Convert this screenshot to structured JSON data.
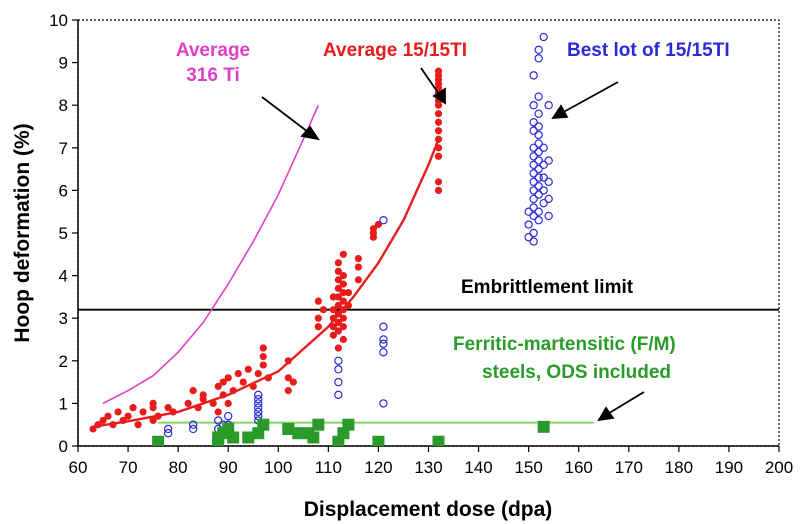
{
  "chart_data": {
    "type": "scatter",
    "title": "",
    "xlabel": "Displacement dose (dpa)",
    "ylabel": "Hoop deformation (%)",
    "xlim": [
      60,
      200
    ],
    "ylim": [
      0,
      10
    ],
    "x_ticks": [
      "60",
      "70",
      "80",
      "90",
      "100",
      "110",
      "120",
      "130",
      "140",
      "150",
      "160",
      "170",
      "180",
      "190",
      "200"
    ],
    "y_ticks": [
      "0",
      "1",
      "2",
      "3",
      "4",
      "5",
      "6",
      "7",
      "8",
      "9",
      "10"
    ],
    "grid": false,
    "colors": {
      "average_316ti": "#e040c8",
      "average_1515ti": "#e81c1c",
      "best_lot": "#2a2ad8",
      "ferritic": "#2a9a2a",
      "ferritic_line": "#88d060",
      "embrittlement": "#000000"
    },
    "series": [
      {
        "name": "Average 316 Ti",
        "kind": "line",
        "x": [
          65,
          70,
          75,
          80,
          85,
          90,
          95,
          100,
          105,
          108
        ],
        "y": [
          1.0,
          1.3,
          1.65,
          2.2,
          2.9,
          3.8,
          4.8,
          5.9,
          7.2,
          8.0
        ]
      },
      {
        "name": "Average 15/15Ti",
        "kind": "line",
        "x": [
          63,
          70,
          80,
          90,
          100,
          110,
          115,
          120,
          125,
          130,
          132
        ],
        "y": [
          0.45,
          0.58,
          0.8,
          1.2,
          1.75,
          2.8,
          3.5,
          4.3,
          5.3,
          6.6,
          7.2
        ]
      },
      {
        "name": "Average 15/15Ti",
        "kind": "points",
        "marker": "filled-circle",
        "x": [
          63,
          64,
          65,
          66,
          67,
          68,
          69,
          70,
          71,
          72,
          73,
          75,
          75,
          75,
          76,
          78,
          79,
          82,
          83,
          84,
          85,
          85,
          87,
          88,
          88,
          89,
          89,
          90,
          90,
          91,
          92,
          93,
          94,
          95,
          96,
          97,
          97,
          97,
          98,
          102,
          102,
          102,
          103,
          108,
          108,
          108,
          109,
          111,
          111,
          111,
          111,
          111,
          112,
          112,
          112,
          112,
          112,
          112,
          112,
          112,
          112,
          112,
          113,
          113,
          113,
          113,
          113,
          113,
          113,
          113,
          113,
          114,
          114,
          116,
          116,
          116,
          119,
          119,
          119,
          120,
          132,
          132,
          132,
          132,
          132,
          132,
          132,
          132,
          132,
          132,
          132,
          132,
          132,
          132,
          132,
          132
        ],
        "y": [
          0.4,
          0.5,
          0.6,
          0.7,
          0.5,
          0.8,
          0.6,
          0.7,
          0.9,
          0.5,
          0.8,
          0.9,
          0.6,
          1.0,
          0.7,
          0.9,
          0.8,
          1.0,
          1.3,
          0.9,
          1.2,
          1.1,
          1.0,
          1.4,
          0.8,
          1.5,
          1.2,
          1.0,
          1.6,
          1.3,
          1.7,
          1.5,
          1.8,
          1.4,
          1.7,
          2.3,
          2.1,
          1.9,
          1.6,
          1.3,
          1.6,
          2.0,
          1.5,
          2.8,
          3.0,
          3.4,
          3.2,
          2.6,
          2.8,
          3.0,
          3.2,
          3.5,
          2.3,
          2.7,
          2.9,
          3.1,
          3.3,
          3.5,
          3.7,
          3.9,
          4.1,
          4.3,
          2.5,
          2.8,
          3.0,
          3.2,
          3.4,
          3.6,
          3.8,
          4.0,
          4.5,
          3.3,
          3.6,
          3.9,
          4.2,
          4.4,
          4.9,
          5.0,
          5.1,
          5.2,
          6.0,
          6.2,
          6.8,
          7.0,
          7.2,
          7.4,
          7.6,
          7.8,
          8.0,
          8.1,
          8.3,
          8.4,
          8.5,
          8.6,
          8.7,
          8.8
        ]
      },
      {
        "name": "Best lot of 15/15TI",
        "kind": "points",
        "marker": "open-circle",
        "x": [
          78,
          78,
          83,
          83,
          88,
          88,
          89,
          90,
          90,
          90,
          96,
          96,
          96,
          96,
          96,
          96,
          96,
          112,
          112,
          112,
          112,
          121,
          121,
          121,
          121,
          121,
          121,
          150,
          150,
          150,
          151,
          151,
          151,
          151,
          151,
          151,
          151,
          151,
          151,
          151,
          151,
          151,
          151,
          151,
          151,
          152,
          152,
          152,
          152,
          152,
          152,
          152,
          152,
          152,
          152,
          152,
          152,
          152,
          152,
          152,
          153,
          153,
          153,
          153,
          153,
          153,
          154,
          154,
          154,
          154,
          154
        ],
        "y": [
          0.3,
          0.4,
          0.4,
          0.5,
          0.4,
          0.6,
          0.5,
          0.7,
          0.3,
          0.5,
          0.6,
          0.7,
          0.8,
          0.9,
          1.0,
          1.1,
          1.2,
          1.2,
          1.5,
          1.8,
          2.0,
          1.0,
          2.2,
          2.4,
          2.5,
          2.8,
          5.3,
          4.9,
          5.2,
          5.5,
          4.8,
          5.0,
          5.4,
          5.6,
          5.8,
          6.0,
          6.2,
          6.4,
          6.6,
          6.8,
          7.0,
          7.4,
          7.6,
          8.0,
          8.7,
          5.3,
          5.5,
          5.9,
          6.1,
          6.3,
          6.5,
          6.7,
          6.9,
          7.1,
          7.3,
          7.5,
          7.8,
          8.2,
          9.1,
          9.3,
          5.7,
          6.0,
          6.3,
          6.6,
          7.0,
          9.6,
          5.4,
          5.8,
          6.2,
          6.7,
          8.0
        ]
      },
      {
        "name": "Ferritic-martensitic (F/M) steels, ODS included",
        "kind": "points",
        "marker": "filled-square",
        "x": [
          76,
          88,
          88,
          89,
          90,
          91,
          94,
          96,
          97,
          102,
          104,
          106,
          107,
          108,
          112,
          113,
          114,
          120,
          132,
          153
        ],
        "y": [
          0.1,
          0.2,
          0.1,
          0.3,
          0.4,
          0.2,
          0.2,
          0.3,
          0.5,
          0.4,
          0.3,
          0.3,
          0.2,
          0.5,
          0.1,
          0.3,
          0.5,
          0.1,
          0.1,
          0.45
        ]
      },
      {
        "name": "Ferritic-martensitic (F/M) steels, ODS included",
        "kind": "line",
        "x": [
          76,
          163
        ],
        "y": [
          0.55,
          0.55
        ]
      }
    ],
    "reference_lines": [
      {
        "name": "Embrittlement limit",
        "orientation": "horizontal",
        "y": 3.2
      }
    ],
    "annotations": {
      "average_316ti": [
        "Average",
        "316 Ti"
      ],
      "average_1515ti": "Average 15/15TI",
      "best_lot": "Best lot of 15/15TI",
      "embrittlement": "Embrittlement limit",
      "ferritic": [
        "Ferritic-martensitic (F/M)",
        "steels, ODS included"
      ]
    }
  }
}
